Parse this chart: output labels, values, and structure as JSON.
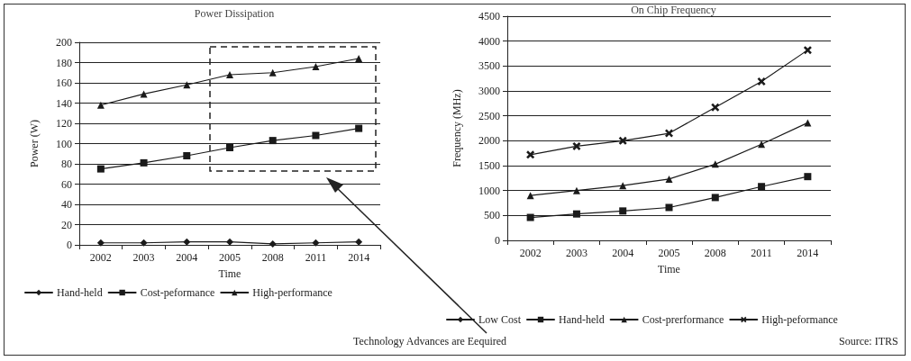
{
  "chart_data": [
    {
      "type": "line",
      "title": "Power Dissipation",
      "xlabel": "Time",
      "ylabel": "Power (W)",
      "categories": [
        "2002",
        "2003",
        "2004",
        "2005",
        "2008",
        "2011",
        "2014"
      ],
      "ylim": [
        0,
        200
      ],
      "yticks": [
        0,
        20,
        40,
        60,
        80,
        100,
        120,
        140,
        160,
        180,
        200
      ],
      "grid": "y",
      "legend": "bottom",
      "series": [
        {
          "name": "Hand-held",
          "color": "#1a1a1a",
          "marker": "diamond",
          "values": [
            2,
            2,
            3,
            3,
            1,
            2,
            3
          ]
        },
        {
          "name": "Cost-peformance",
          "color": "#1a1a1a",
          "marker": "square",
          "values": [
            75,
            81,
            88,
            96,
            103,
            108,
            115
          ]
        },
        {
          "name": "High-performance",
          "color": "#1a1a1a",
          "marker": "triangle",
          "values": [
            138,
            149,
            158,
            168,
            170,
            176,
            184
          ]
        }
      ],
      "annotations": [
        "Technology Advances are Eequired"
      ]
    },
    {
      "type": "line",
      "title": "On Chip Frequency",
      "xlabel": "Time",
      "ylabel": "Frequency (MHz)",
      "categories": [
        "2002",
        "2003",
        "2004",
        "2005",
        "2008",
        "2011",
        "2014"
      ],
      "ylim": [
        0,
        4500
      ],
      "yticks": [
        0,
        500,
        1000,
        1500,
        2000,
        2500,
        3000,
        3500,
        4000,
        4500
      ],
      "grid": "y",
      "legend": "bottom",
      "series": [
        {
          "name": "Low Cost",
          "color": "#1a1a1a",
          "marker": "diamond",
          "values": [
            null,
            null,
            null,
            null,
            null,
            null,
            null
          ]
        },
        {
          "name": "Hand-held",
          "color": "#1a1a1a",
          "marker": "square",
          "values": [
            460,
            530,
            590,
            660,
            860,
            1080,
            1280
          ]
        },
        {
          "name": "Cost-prerformance",
          "color": "#1a1a1a",
          "marker": "triangle",
          "values": [
            900,
            1000,
            1100,
            1230,
            1530,
            1930,
            2360
          ]
        },
        {
          "name": "High-peformance",
          "color": "#1a1a1a",
          "marker": "cross",
          "values": [
            1720,
            1890,
            2000,
            2150,
            2670,
            3190,
            3820
          ]
        }
      ],
      "annotations": [
        "Source: ITRS"
      ]
    }
  ]
}
